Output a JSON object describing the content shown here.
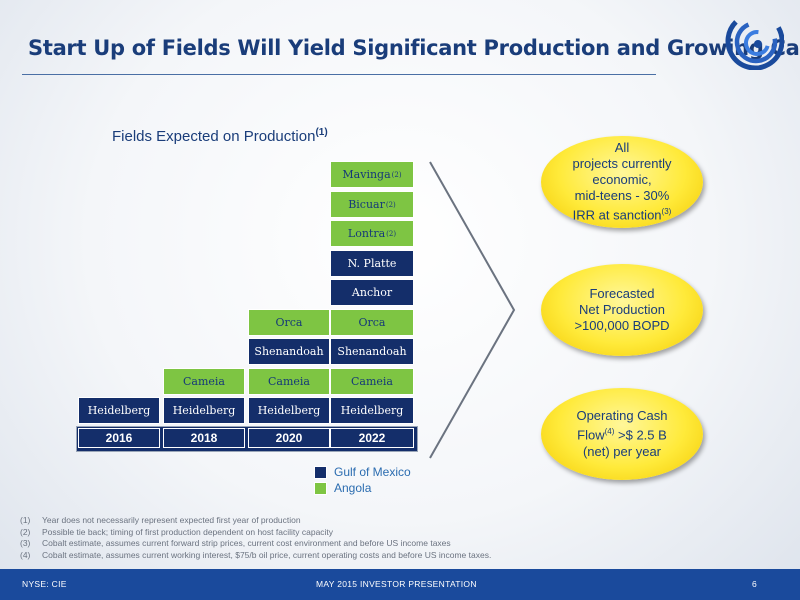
{
  "slide": {
    "title": "Start Up of Fields Will Yield Significant Production and Growing Cash",
    "subtitle": "Fields Expected on Production",
    "subtitle_note": "(1)"
  },
  "colors": {
    "gulf_of_mexico": "#142e6a",
    "angola": "#7ec543",
    "title_blue": "#1a3d7a",
    "footer_blue": "#1a4a9c",
    "callout_yellow": "#ffea3a"
  },
  "fields_chart": {
    "years": [
      "2016",
      "2018",
      "2020",
      "2022"
    ],
    "columns": [
      {
        "year": "2016",
        "fields": [
          {
            "name": "Heidelberg",
            "region": "gulf_of_mexico"
          }
        ]
      },
      {
        "year": "2018",
        "fields": [
          {
            "name": "Heidelberg",
            "region": "gulf_of_mexico"
          },
          {
            "name": "Cameia",
            "region": "angola"
          }
        ]
      },
      {
        "year": "2020",
        "fields": [
          {
            "name": "Heidelberg",
            "region": "gulf_of_mexico"
          },
          {
            "name": "Cameia",
            "region": "angola"
          },
          {
            "name": "Shenandoah",
            "region": "gulf_of_mexico"
          },
          {
            "name": "Orca",
            "region": "angola"
          }
        ]
      },
      {
        "year": "2022",
        "fields": [
          {
            "name": "Heidelberg",
            "region": "gulf_of_mexico"
          },
          {
            "name": "Cameia",
            "region": "angola"
          },
          {
            "name": "Shenandoah",
            "region": "gulf_of_mexico"
          },
          {
            "name": "Orca",
            "region": "angola"
          },
          {
            "name": "Anchor",
            "region": "gulf_of_mexico"
          },
          {
            "name": "N. Platte",
            "region": "gulf_of_mexico"
          },
          {
            "name": "Lontra",
            "note": "(2)",
            "region": "angola"
          },
          {
            "name": "Bicuar",
            "note": "(2)",
            "region": "angola"
          },
          {
            "name": "Mavinga",
            "note": "(2)",
            "region": "angola"
          }
        ]
      }
    ]
  },
  "callouts": [
    {
      "lines": [
        "All",
        "projects currently",
        "economic,",
        "mid-teens - 30%"
      ],
      "last_line": "IRR at sanction",
      "note": "(3)"
    },
    {
      "lines": [
        "Forecasted",
        "Net Production",
        ">100,000 BOPD"
      ]
    },
    {
      "line1_pre": "Operating Cash",
      "line2_pre": "Flow",
      "note": "(4)",
      "line2_post": " >$ 2.5 B",
      "line3": "(net) per year"
    }
  ],
  "legend": [
    {
      "label": "Gulf of Mexico",
      "color": "#142e6a"
    },
    {
      "label": "Angola",
      "color": "#7ec543"
    }
  ],
  "footnotes": [
    {
      "num": "(1)",
      "text": "Year does not necessarily represent expected first year of production"
    },
    {
      "num": "(2)",
      "text": "Possible tie back; timing of first production dependent on host facility capacity"
    },
    {
      "num": "(3)",
      "text": "Cobalt estimate, assumes current forward strip prices, current cost environment and before US income taxes"
    },
    {
      "num": "(4)",
      "text": "Cobalt estimate, assumes current working interest, $75/b oil price, current operating costs and before US income taxes."
    }
  ],
  "footer": {
    "ticker": "NYSE: CIE",
    "presentation": "MAY 2015 INVESTOR PRESENTATION",
    "page_number": "6"
  }
}
